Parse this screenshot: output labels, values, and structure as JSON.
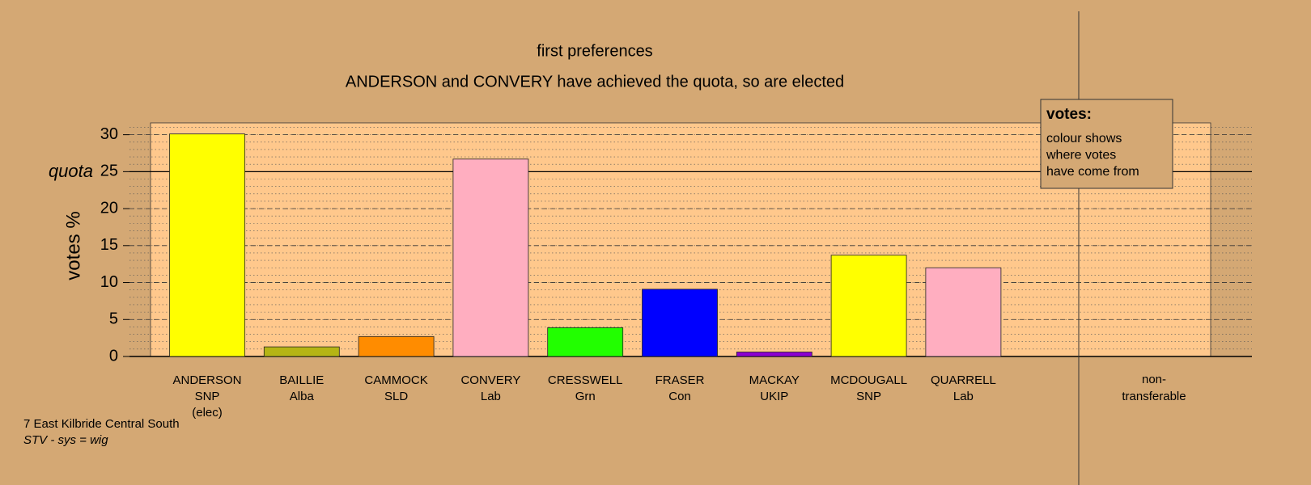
{
  "chart_data": {
    "type": "bar",
    "title": "first preferences",
    "subtitle": "ANDERSON and CONVERY have achieved the quota, so are elected",
    "y_label": "votes %",
    "quota": {
      "value": 25,
      "label": "quota"
    },
    "categories": [
      "ANDERSON",
      "BAILLIE",
      "CAMMOCK",
      "CONVERY",
      "CRESSWELL",
      "FRASER",
      "MACKAY",
      "MCDOUGALL",
      "QUARRELL"
    ],
    "parties": [
      "SNP",
      "Alba",
      "SLD",
      "Lab",
      "Grn",
      "Con",
      "UKIP",
      "SNP",
      "Lab"
    ],
    "notes": [
      "(elec)",
      null,
      null,
      null,
      null,
      null,
      null,
      null,
      null
    ],
    "values": [
      30.1,
      1.3,
      2.7,
      26.7,
      3.9,
      9.1,
      0.6,
      13.7,
      12.0
    ],
    "colors": [
      "#ffff00",
      "#b5b514",
      "#ff8c00",
      "#ffaec0",
      "#22ff00",
      "#0000ff",
      "#8b00d0",
      "#ffff00",
      "#ffaec0"
    ],
    "non_transferable_label": [
      "non-",
      "transferable"
    ],
    "ylim": [
      0,
      31.6
    ],
    "yticks": [
      0,
      5,
      10,
      15,
      20,
      25,
      30
    ],
    "grid": true,
    "minor_grid": true,
    "legend": {
      "title": "votes:",
      "lines": [
        "colour shows",
        "where votes",
        "have come from"
      ]
    },
    "footer": [
      "7 East Kilbride Central South",
      "STV - sys = wig"
    ]
  }
}
